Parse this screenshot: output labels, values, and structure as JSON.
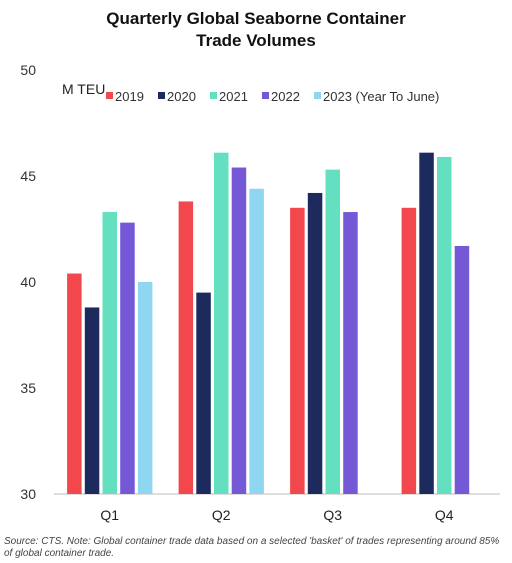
{
  "chart_data": {
    "type": "bar",
    "title_line1": "Quarterly Global Seaborne Container",
    "title_line2": "Trade Volumes",
    "ylabel": "M TEU",
    "ylim": [
      30,
      50
    ],
    "yticks": [
      30,
      35,
      40,
      45,
      50
    ],
    "categories": [
      "Q1",
      "Q2",
      "Q3",
      "Q4"
    ],
    "series": [
      {
        "name": "2019",
        "color": "#f2474d",
        "values": [
          40.4,
          43.8,
          43.5,
          43.5
        ]
      },
      {
        "name": "2020",
        "color": "#1c2a5e",
        "values": [
          38.8,
          39.5,
          44.2,
          46.1
        ]
      },
      {
        "name": "2021",
        "color": "#64e0c0",
        "values": [
          43.3,
          46.1,
          45.3,
          45.9
        ]
      },
      {
        "name": "2022",
        "color": "#7458d6",
        "values": [
          42.8,
          45.4,
          43.3,
          41.7
        ]
      },
      {
        "name": "2023 (Year To June)",
        "color": "#8fd6f0",
        "values": [
          40.0,
          44.4,
          null,
          null
        ]
      }
    ],
    "legend_position": "top-right",
    "grid": false
  },
  "source_note": "Source: CTS. Note: Global container trade data based on a selected 'basket' of trades representing around 85% of global container trade."
}
